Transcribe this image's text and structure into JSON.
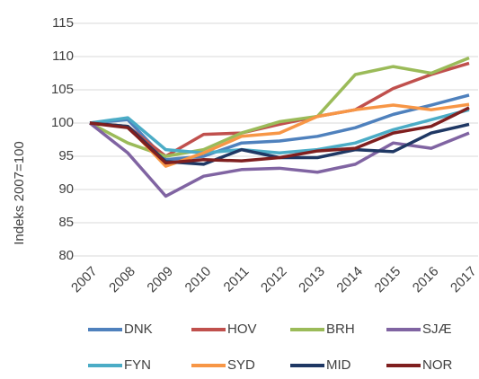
{
  "chart_data": {
    "type": "line",
    "y_label": "Indeks 2007=100",
    "x": [
      "2007",
      "2008",
      "2009",
      "2010",
      "2011",
      "2012",
      "2013",
      "2014",
      "2015",
      "2016",
      "2017"
    ],
    "ylim": [
      80,
      115
    ],
    "yticks": [
      80,
      85,
      90,
      95,
      100,
      105,
      110,
      115
    ],
    "grid": true,
    "series": [
      {
        "name": "DNK",
        "color": "#4f81bd",
        "values": [
          100,
          100.5,
          94.5,
          95,
          97,
          97.3,
          98,
          99.3,
          101.3,
          102.7,
          104.2
        ]
      },
      {
        "name": "HOV",
        "color": "#c0504d",
        "values": [
          100,
          99.5,
          95,
          98.3,
          98.5,
          99.8,
          101,
          102,
          105.2,
          107.3,
          109
        ]
      },
      {
        "name": "BRH",
        "color": "#9bbb59",
        "values": [
          100,
          97,
          95,
          96,
          98.5,
          100.2,
          101,
          107.3,
          108.5,
          107.5,
          109.8
        ]
      },
      {
        "name": "SJÆ",
        "color": "#8064a2",
        "values": [
          100,
          95.5,
          89,
          92,
          93,
          93.2,
          92.6,
          93.8,
          97,
          96.2,
          98.5
        ]
      },
      {
        "name": "FYN",
        "color": "#4bacc6",
        "values": [
          100,
          100.8,
          96,
          95.5,
          96,
          95.5,
          96,
          97,
          99,
          100.5,
          102
        ]
      },
      {
        "name": "SYD",
        "color": "#f79646",
        "values": [
          100,
          99.5,
          93.5,
          95.5,
          98,
          98.5,
          101,
          102,
          102.7,
          102,
          102.8
        ]
      },
      {
        "name": "MID",
        "color": "#1f3864",
        "values": [
          100,
          99.5,
          94.2,
          93.8,
          96,
          94.8,
          94.8,
          96,
          95.7,
          98.5,
          99.8
        ]
      },
      {
        "name": "NOR",
        "color": "#7f1f1f",
        "values": [
          100,
          99.3,
          94,
          94.5,
          94.3,
          94.8,
          95.8,
          96.2,
          98.5,
          99.5,
          102.3
        ]
      }
    ]
  }
}
